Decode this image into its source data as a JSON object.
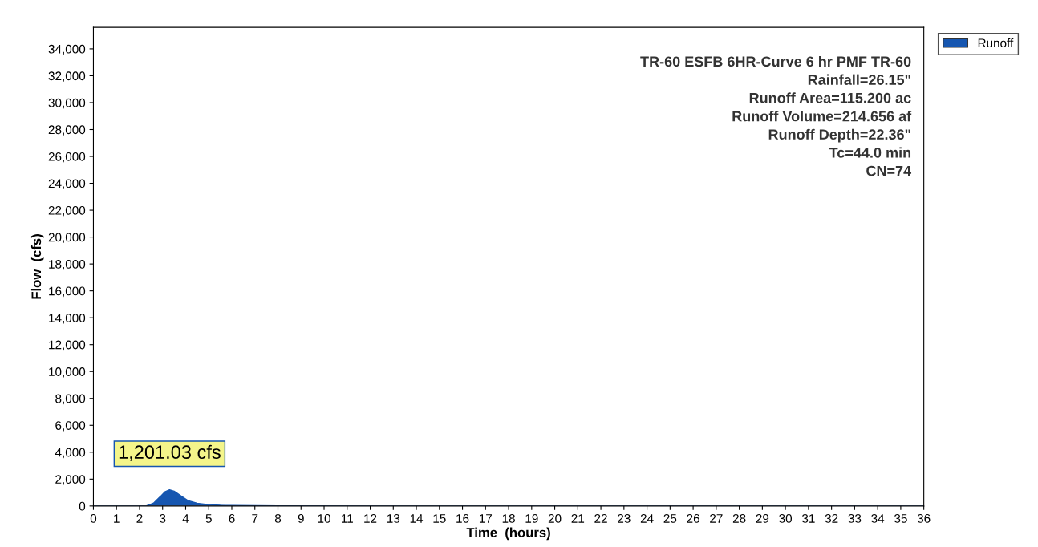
{
  "chart_data": {
    "type": "area",
    "xlabel": "Time  (hours)",
    "ylabel": "Flow  (cfs)",
    "x": [
      0,
      1,
      2,
      2.3,
      2.6,
      2.9,
      3.1,
      3.3,
      3.5,
      3.8,
      4.1,
      4.5,
      5,
      5.5,
      6,
      7,
      8,
      12,
      36
    ],
    "series": [
      {
        "name": "Runoff",
        "color": "#1656b0",
        "values": [
          0,
          0,
          0,
          10,
          200,
          700,
          1050,
          1201.03,
          1100,
          750,
          400,
          200,
          100,
          60,
          40,
          20,
          10,
          0,
          0
        ]
      }
    ],
    "xlim": [
      0,
      36
    ],
    "ylim": [
      0,
      35600
    ],
    "xticks": [
      0,
      1,
      2,
      3,
      4,
      5,
      6,
      7,
      8,
      9,
      10,
      11,
      12,
      13,
      14,
      15,
      16,
      17,
      18,
      19,
      20,
      21,
      22,
      23,
      24,
      25,
      26,
      27,
      28,
      29,
      30,
      31,
      32,
      33,
      34,
      35,
      36
    ],
    "yticks": [
      0,
      {
        "value": 2000,
        "label": "2,000"
      },
      {
        "value": 4000,
        "label": "4,000"
      },
      {
        "value": 6000,
        "label": "6,000"
      },
      {
        "value": 8000,
        "label": "8,000"
      },
      {
        "value": 10000,
        "label": "10,000"
      },
      {
        "value": 12000,
        "label": "12,000"
      },
      {
        "value": 14000,
        "label": "14,000"
      },
      {
        "value": 16000,
        "label": "16,000"
      },
      {
        "value": 18000,
        "label": "18,000"
      },
      {
        "value": 20000,
        "label": "20,000"
      },
      {
        "value": 22000,
        "label": "22,000"
      },
      {
        "value": 24000,
        "label": "24,000"
      },
      {
        "value": 26000,
        "label": "26,000"
      },
      {
        "value": 28000,
        "label": "28,000"
      },
      {
        "value": 30000,
        "label": "30,000"
      },
      {
        "value": 32000,
        "label": "32,000"
      },
      {
        "value": 34000,
        "label": "34,000"
      }
    ],
    "annotations": [
      {
        "text": "1,201.03 cfs",
        "x": 3.3,
        "y": 1201.03
      },
      "TR-60 ESFB 6HR-Curve 6 hr PMF TR-60\nRainfall=26.15\"\nRunoff Area=115.200 ac\nRunoff Volume=214.656 af\nRunoff Depth=22.36\"\nTc=44.0 min\nCN=74"
    ],
    "grid": false,
    "legend": "top right"
  }
}
